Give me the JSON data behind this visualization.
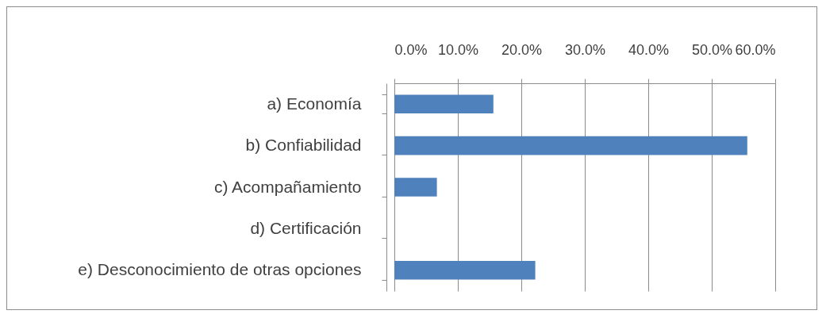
{
  "chart_data": {
    "type": "bar",
    "orientation": "horizontal",
    "categories": [
      "a) Economía",
      "b) Confiabilidad",
      "c) Acompañamiento",
      "d) Certificación",
      "e) Desconocimiento de otras opciones"
    ],
    "values": [
      15.6,
      55.6,
      6.7,
      0,
      22.2
    ],
    "color": "#4f81bd",
    "xlim": [
      0,
      60
    ],
    "xticks": [
      {
        "value": 0,
        "label": "0.0%"
      },
      {
        "value": 10,
        "label": "10.0%"
      },
      {
        "value": 20,
        "label": "20.0%"
      },
      {
        "value": 30,
        "label": "30.0%"
      },
      {
        "value": 40,
        "label": "40.0%"
      },
      {
        "value": 50,
        "label": "50.0%"
      },
      {
        "value": 60,
        "label": "60.0%"
      }
    ],
    "grid": "x"
  }
}
